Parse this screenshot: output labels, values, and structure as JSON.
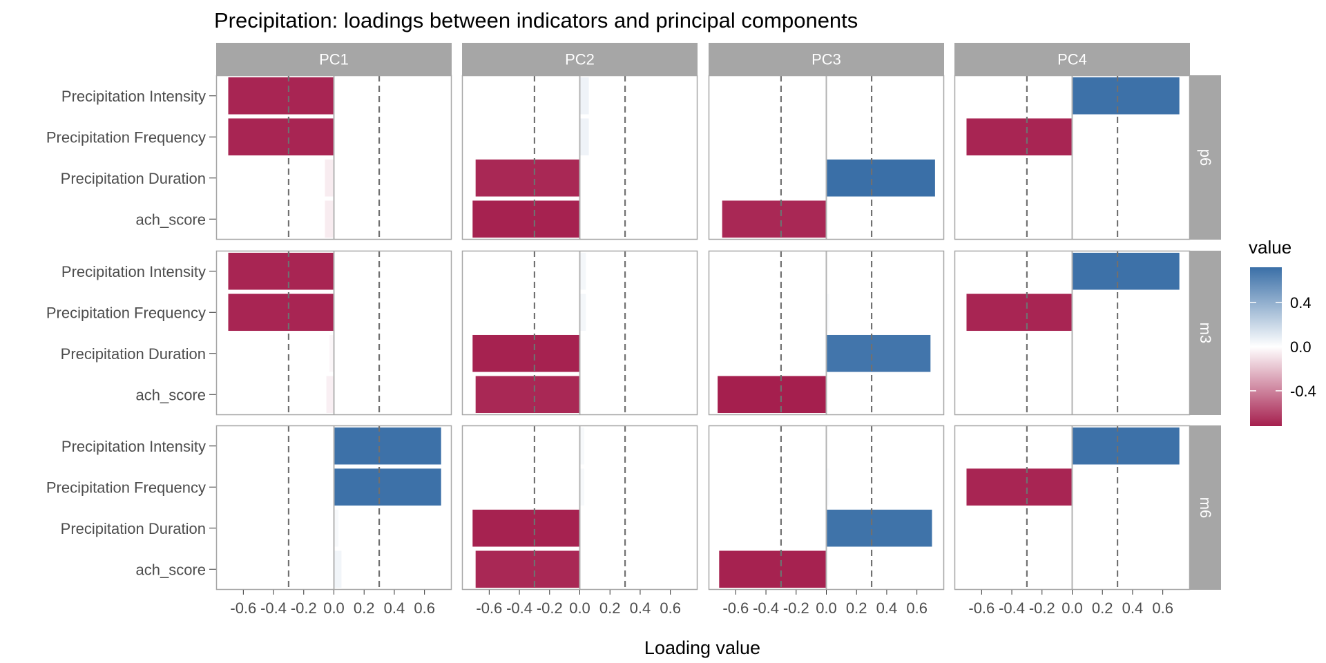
{
  "chart_data": {
    "type": "bar",
    "orientation": "horizontal",
    "title": "Precipitation: loadings between indicators and principal components",
    "xlabel": "Loading value",
    "ylabel": "",
    "xlim": [
      -0.78,
      0.78
    ],
    "x_ticks": [
      -0.6,
      -0.4,
      -0.2,
      0.0,
      0.2,
      0.4,
      0.6
    ],
    "x_tick_labels": [
      "-0.6",
      "-0.4",
      "-0.2",
      "0.0",
      "0.2",
      "0.4",
      "0.6"
    ],
    "reference_lines": [
      -0.3,
      0.3
    ],
    "grid": false,
    "categories": [
      "Precipitation Intensity",
      "Precipitation Frequency",
      "Precipitation Duration",
      "ach_score"
    ],
    "columns": [
      "PC1",
      "PC2",
      "PC3",
      "PC4"
    ],
    "rows": [
      "p6",
      "m3",
      "m6"
    ],
    "values": {
      "p6": {
        "PC1": [
          -0.7,
          -0.7,
          -0.06,
          -0.06
        ],
        "PC2": [
          0.06,
          0.06,
          -0.69,
          -0.71
        ],
        "PC3": [
          0.0,
          0.0,
          0.72,
          -0.69
        ],
        "PC4": [
          0.71,
          -0.7,
          0.0,
          0.0
        ]
      },
      "m3": {
        "PC1": [
          -0.7,
          -0.7,
          -0.03,
          -0.05
        ],
        "PC2": [
          0.04,
          0.04,
          -0.71,
          -0.69
        ],
        "PC3": [
          0.0,
          0.02,
          0.69,
          -0.72
        ],
        "PC4": [
          0.71,
          -0.7,
          0.0,
          0.0
        ]
      },
      "m6": {
        "PC1": [
          0.71,
          0.71,
          0.03,
          0.05
        ],
        "PC2": [
          0.03,
          0.03,
          -0.71,
          -0.69
        ],
        "PC3": [
          0.0,
          0.02,
          0.7,
          -0.71
        ],
        "PC4": [
          0.71,
          -0.7,
          0.0,
          0.0
        ]
      }
    },
    "legend": {
      "title": "value",
      "position": "right",
      "ticks": [
        0.4,
        0.0,
        -0.4
      ],
      "tick_labels": [
        "0.4",
        "0.0",
        "-0.4"
      ],
      "range": [
        -0.72,
        0.72
      ]
    },
    "colors": {
      "negative": "#A51F4E",
      "midpoint": "#FFFFFF",
      "positive": "#3A6FA7",
      "strip_bg": "#A6A6A6",
      "strip_text": "#FFFFFF",
      "panel_border": "#A6A6A6",
      "zero_line": "#B3B3B3",
      "ref_line": "#707070",
      "axis_text": "#4D4D4D",
      "title_text": "#000000"
    }
  }
}
